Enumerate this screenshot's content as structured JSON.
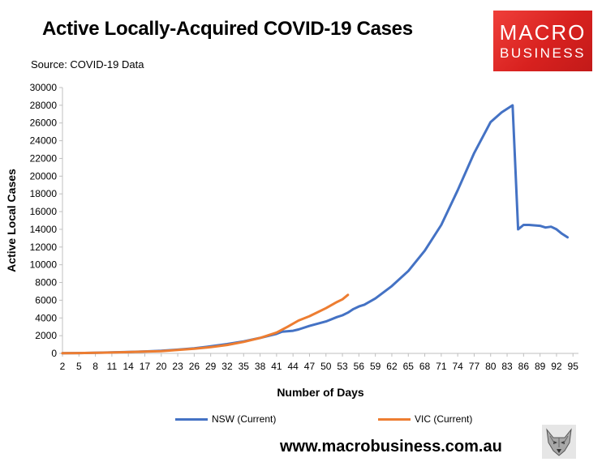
{
  "title": "Active Locally-Acquired COVID-19 Cases",
  "source": "Source: COVID-19 Data",
  "logo": {
    "line1": "MACRO",
    "line2": "BUSINESS"
  },
  "url": "www.macrobusiness.com.au",
  "chart_data": {
    "type": "line",
    "xlabel": "Number of Days",
    "ylabel": "Active Local Cases",
    "xlim": [
      2,
      96
    ],
    "ylim": [
      0,
      30000
    ],
    "x_tick_labels": [
      2,
      5,
      8,
      11,
      14,
      17,
      20,
      23,
      26,
      29,
      32,
      35,
      38,
      41,
      44,
      47,
      50,
      53,
      56,
      59,
      62,
      65,
      68,
      71,
      74,
      77,
      80,
      83,
      86,
      89,
      92,
      95
    ],
    "y_ticks": [
      0,
      2000,
      4000,
      6000,
      8000,
      10000,
      12000,
      14000,
      16000,
      18000,
      20000,
      22000,
      24000,
      26000,
      28000,
      30000
    ],
    "grid": false,
    "legend": "bottom",
    "series": [
      {
        "name": "NSW (Current)",
        "color": "#4472c4",
        "points": [
          [
            2,
            20
          ],
          [
            5,
            40
          ],
          [
            8,
            70
          ],
          [
            11,
            110
          ],
          [
            14,
            160
          ],
          [
            17,
            220
          ],
          [
            20,
            290
          ],
          [
            23,
            420
          ],
          [
            26,
            580
          ],
          [
            29,
            800
          ],
          [
            32,
            1050
          ],
          [
            35,
            1350
          ],
          [
            38,
            1750
          ],
          [
            41,
            2200
          ],
          [
            42,
            2450
          ],
          [
            44,
            2550
          ],
          [
            45,
            2700
          ],
          [
            47,
            3100
          ],
          [
            50,
            3600
          ],
          [
            52,
            4100
          ],
          [
            53,
            4300
          ],
          [
            54,
            4600
          ],
          [
            55,
            5000
          ],
          [
            56,
            5300
          ],
          [
            57,
            5500
          ],
          [
            59,
            6200
          ],
          [
            62,
            7600
          ],
          [
            65,
            9300
          ],
          [
            68,
            11600
          ],
          [
            71,
            14500
          ],
          [
            74,
            18400
          ],
          [
            77,
            22600
          ],
          [
            80,
            26100
          ],
          [
            82,
            27200
          ],
          [
            84,
            28000
          ],
          [
            85,
            14000
          ],
          [
            86,
            14500
          ],
          [
            87,
            14500
          ],
          [
            89,
            14400
          ],
          [
            90,
            14200
          ],
          [
            91,
            14300
          ],
          [
            92,
            14000
          ],
          [
            93,
            13500
          ],
          [
            94,
            13100
          ]
        ]
      },
      {
        "name": "VIC (Current)",
        "color": "#ed7d31",
        "points": [
          [
            2,
            20
          ],
          [
            5,
            35
          ],
          [
            8,
            60
          ],
          [
            11,
            100
          ],
          [
            14,
            150
          ],
          [
            17,
            200
          ],
          [
            20,
            260
          ],
          [
            23,
            380
          ],
          [
            26,
            530
          ],
          [
            29,
            700
          ],
          [
            32,
            950
          ],
          [
            35,
            1300
          ],
          [
            38,
            1750
          ],
          [
            41,
            2350
          ],
          [
            43,
            3000
          ],
          [
            45,
            3700
          ],
          [
            47,
            4200
          ],
          [
            50,
            5100
          ],
          [
            52,
            5800
          ],
          [
            53,
            6100
          ],
          [
            54,
            6600
          ]
        ]
      }
    ]
  }
}
